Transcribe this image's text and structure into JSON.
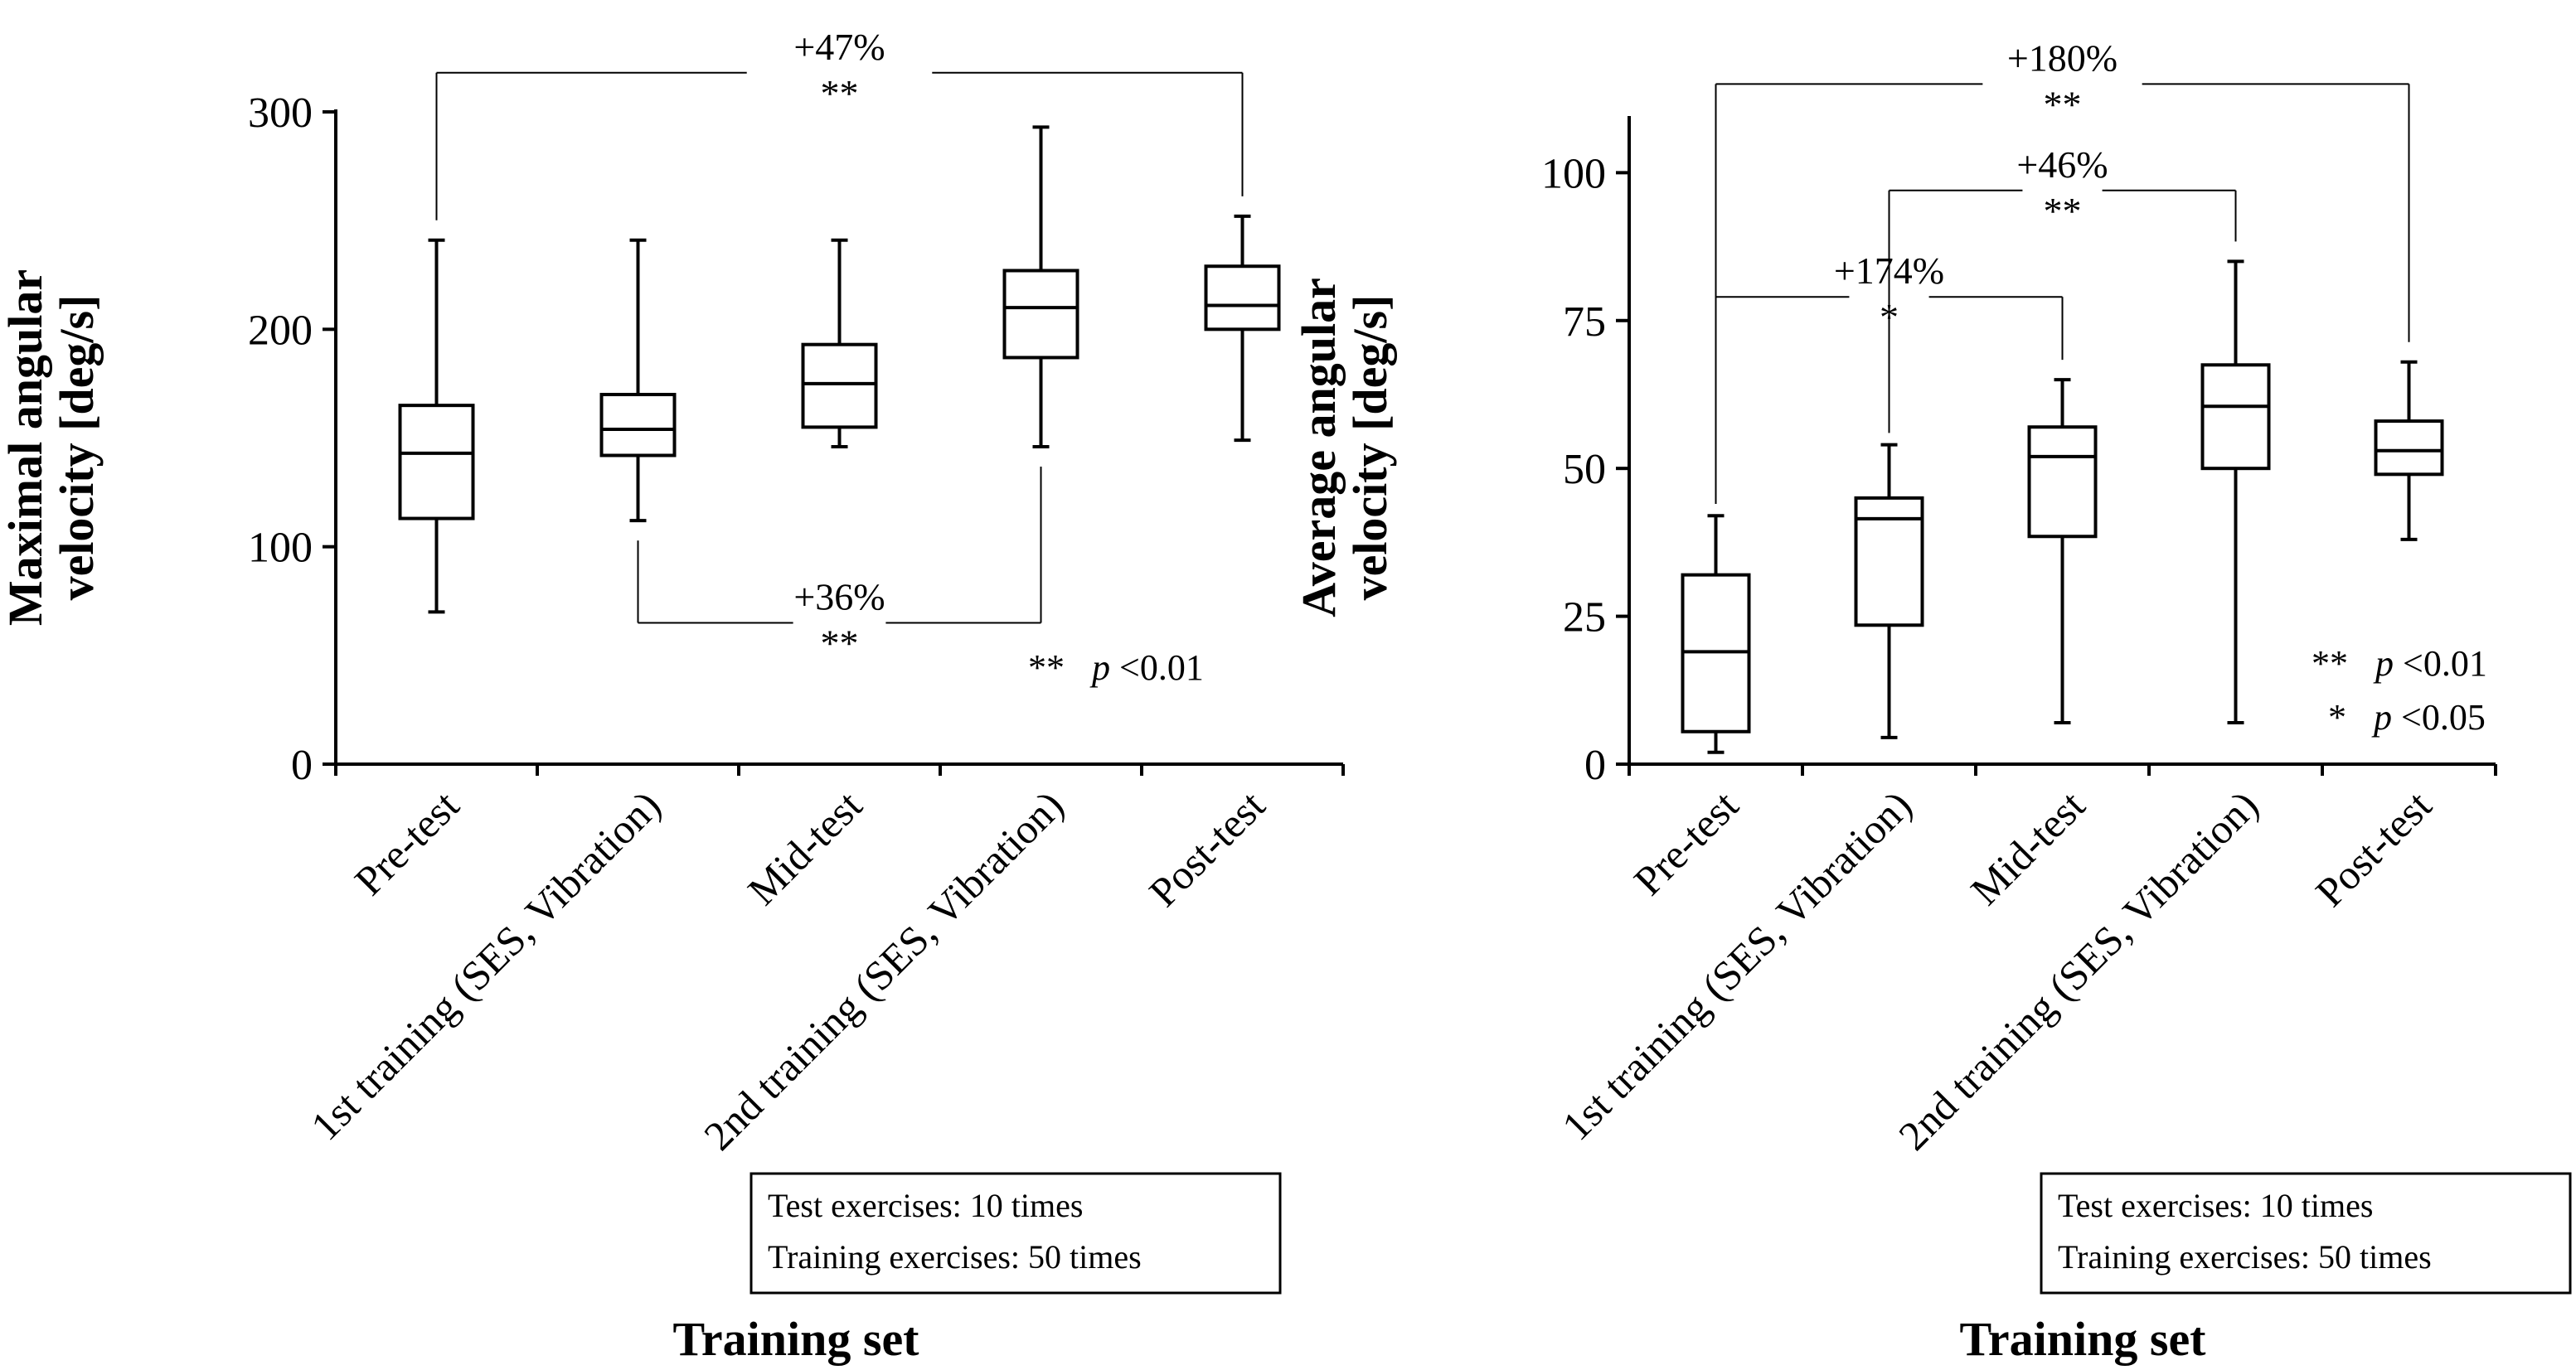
{
  "chart_data": [
    {
      "type": "box",
      "ylabel_line1": "Maximal angular",
      "ylabel_line2": "velocity [deg/s]",
      "xlabel": "Training set",
      "ylim": [
        0,
        300
      ],
      "yticks": [
        0,
        100,
        200,
        300
      ],
      "categories": [
        "Pre-test",
        "1st training (SES, Vibration)",
        "Mid-test",
        "2nd training (SES, Vibration)",
        "Post-test"
      ],
      "boxes": [
        {
          "min": 70,
          "q1": 113,
          "median": 143,
          "q3": 165,
          "max": 241
        },
        {
          "min": 112,
          "q1": 142,
          "median": 154,
          "q3": 170,
          "max": 241
        },
        {
          "min": 146,
          "q1": 155,
          "median": 175,
          "q3": 193,
          "max": 241
        },
        {
          "min": 146,
          "q1": 187,
          "median": 210,
          "q3": 227,
          "max": 293
        },
        {
          "min": 149,
          "q1": 200,
          "median": 211,
          "q3": 229,
          "max": 252
        }
      ],
      "brackets": [
        {
          "from": 0,
          "to": 4,
          "direction": "above",
          "level": 318,
          "percent": "+47%",
          "stars": "**"
        },
        {
          "from": 1,
          "to": 3,
          "direction": "below",
          "level": 65,
          "percent": "+36%",
          "stars": "**"
        }
      ],
      "legend": [
        {
          "stars": "**",
          "p": "p",
          "rest": "<0.01"
        }
      ],
      "note": [
        "Test exercises: 10 times",
        "Training exercises: 50 times"
      ]
    },
    {
      "type": "box",
      "ylabel_line1": "Average angular",
      "ylabel_line2": "velocity [deg/s]",
      "xlabel": "Training set",
      "ylim": [
        0,
        110
      ],
      "yticks": [
        0,
        25,
        50,
        75,
        100
      ],
      "categories": [
        "Pre-test",
        "1st training (SES, Vibration)",
        "Mid-test",
        "2nd training (SES, Vibration)",
        "Post-test"
      ],
      "boxes": [
        {
          "min": 2,
          "q1": 5.5,
          "median": 19,
          "q3": 32,
          "max": 42
        },
        {
          "min": 4.5,
          "q1": 23.5,
          "median": 41.5,
          "q3": 45,
          "max": 54
        },
        {
          "min": 7,
          "q1": 38.5,
          "median": 52,
          "q3": 57,
          "max": 65
        },
        {
          "min": 7,
          "q1": 50,
          "median": 60.5,
          "q3": 67.5,
          "max": 85
        },
        {
          "min": 38,
          "q1": 49,
          "median": 53,
          "q3": 58,
          "max": 68
        }
      ],
      "brackets": [
        {
          "from": 0,
          "to": 4,
          "direction": "above",
          "level": 115,
          "percent": "+180%",
          "stars": "**"
        },
        {
          "from": 1,
          "to": 3,
          "direction": "above",
          "level": 97,
          "percent": "+46%",
          "stars": "**"
        },
        {
          "from": 0,
          "to": 2,
          "direction": "above",
          "level": 79,
          "percent": "+174%",
          "stars": "*"
        }
      ],
      "legend": [
        {
          "stars": "**",
          "p": "p",
          "rest": "<0.01"
        },
        {
          "stars": "*",
          "p": "p",
          "rest": "<0.05"
        }
      ],
      "note": [
        "Test exercises: 10 times",
        "Training exercises: 50 times"
      ]
    }
  ]
}
